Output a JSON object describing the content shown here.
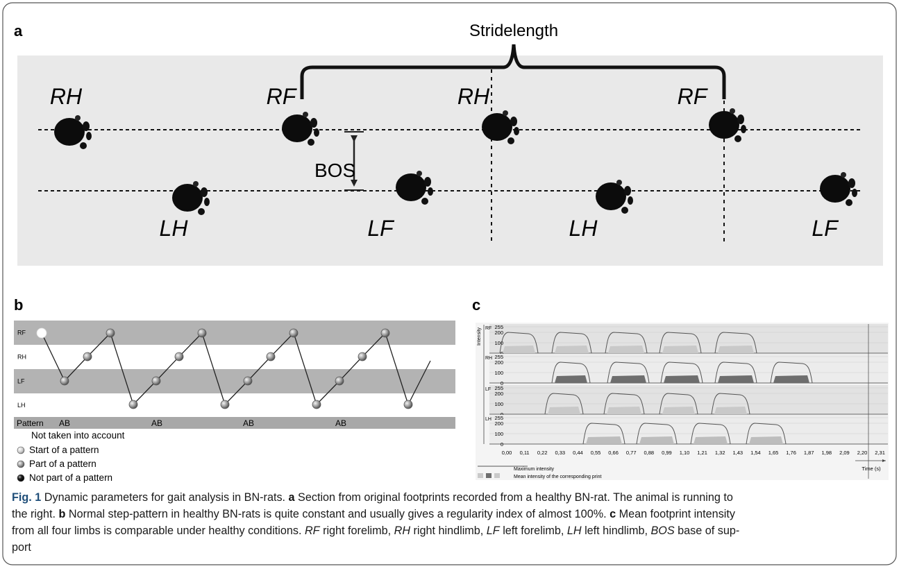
{
  "panel_a": {
    "label": "a",
    "stride_label": "Stridelength",
    "bos_label": "BOS",
    "top_labels": [
      "RH",
      "RF",
      "RH",
      "RF"
    ],
    "bottom_labels": [
      "LH",
      "LF",
      "LH",
      "LF"
    ]
  },
  "panel_b": {
    "label": "b",
    "rows": [
      "RF",
      "RH",
      "LF",
      "LH"
    ],
    "pattern_label": "Pattern",
    "patterns": [
      "AB",
      "AB",
      "AB",
      "AB"
    ],
    "legend": [
      "Not taken into account",
      "Start of a pattern",
      "Part of a pattern",
      "Not part of a pattern"
    ]
  },
  "panel_c": {
    "label": "c",
    "axis_label": "Intensity",
    "rows": [
      "RF",
      "RH",
      "LF",
      "LH"
    ],
    "yticks": [
      "255",
      "200",
      "100",
      "0"
    ],
    "xticks": [
      "0,00",
      "0,11",
      "0,22",
      "0,33",
      "0,44",
      "0,55",
      "0,66",
      "0,77",
      "0,88",
      "0,99",
      "1,10",
      "1,21",
      "1,32",
      "1,43",
      "1,54",
      "1,65",
      "1,76",
      "1,87",
      "1,98",
      "2,09",
      "2,20",
      "2,31"
    ],
    "x_axis_label": "Time (s)",
    "legend": [
      "Maximum intensity",
      "Mean intensity of the corresponding print"
    ]
  },
  "caption": {
    "lines": [
      [
        "Fig. 1",
        "Dynamic parameters for gait analysis in BN-rats.",
        "a",
        "Section from original footprints recorded from a healthy BN-rat. The animal is running to"
      ],
      [
        "the right.",
        "b",
        "Normal step-pattern in healthy BN-rats is quite constant and usually gives a regularity index of almost 100%.",
        "c",
        "Mean footprint intensity"
      ],
      [
        "from all four limbs is comparable under healthy conditions.",
        "RF",
        "right forelimb,",
        "RH",
        "right hindlimb,",
        "LF",
        "left forelimb,",
        "LH",
        "left hindlimb,",
        "BOS",
        "base of sup-"
      ],
      [
        "port"
      ]
    ]
  }
}
